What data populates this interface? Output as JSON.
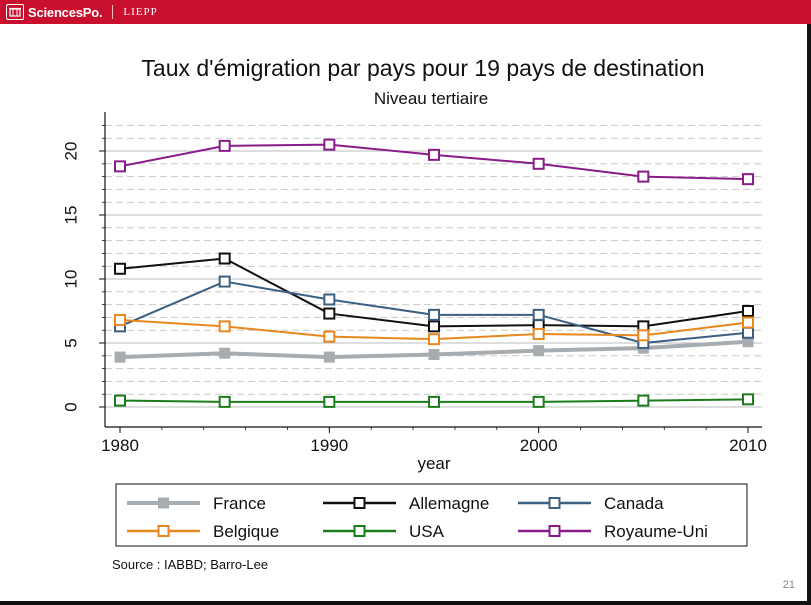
{
  "header": {
    "brand": "SciencesPo.",
    "unit": "LIEPP"
  },
  "slide": {
    "page_number": "21",
    "source": "Source : IABBD; Barro-Lee"
  },
  "colors": {
    "brand": "#c8102e",
    "France": "#a6acb0",
    "Allemagne": "#111111",
    "Canada": "#3c5f82",
    "Belgique": "#e8871e",
    "USA": "#1a7d1a",
    "Royaume-Uni": "#8a1c8a"
  },
  "chart_data": {
    "type": "line",
    "title": "Taux d'émigration par pays pour 19 pays de destination",
    "subtitle": "Niveau tertiaire",
    "xlabel": "year",
    "ylabel": "",
    "xlim": [
      1980,
      2010
    ],
    "ylim": [
      0,
      22
    ],
    "x": [
      1980,
      1985,
      1990,
      1995,
      2000,
      2005,
      2010
    ],
    "xticks": [
      "1980",
      "1990",
      "2000",
      "2010"
    ],
    "yticks": [
      "0",
      "5",
      "10",
      "15",
      "20"
    ],
    "legend_position": "bottom",
    "series": [
      {
        "name": "France",
        "marker": "filled-square",
        "values": [
          3.9,
          4.2,
          3.9,
          4.1,
          4.4,
          4.6,
          5.1
        ]
      },
      {
        "name": "Allemagne",
        "marker": "hollow-square",
        "values": [
          10.8,
          11.6,
          7.3,
          6.3,
          6.4,
          6.3,
          7.5
        ]
      },
      {
        "name": "Canada",
        "marker": "hollow-square",
        "values": [
          6.3,
          9.8,
          8.4,
          7.2,
          7.2,
          5.0,
          5.8
        ]
      },
      {
        "name": "Belgique",
        "marker": "hollow-square",
        "values": [
          6.8,
          6.3,
          5.5,
          5.3,
          5.7,
          5.6,
          6.6
        ]
      },
      {
        "name": "USA",
        "marker": "hollow-square",
        "values": [
          0.5,
          0.4,
          0.4,
          0.4,
          0.4,
          0.5,
          0.6
        ]
      },
      {
        "name": "Royaume-Uni",
        "marker": "hollow-square",
        "values": [
          18.8,
          20.4,
          20.5,
          19.7,
          19.0,
          18.0,
          17.8
        ]
      }
    ]
  }
}
